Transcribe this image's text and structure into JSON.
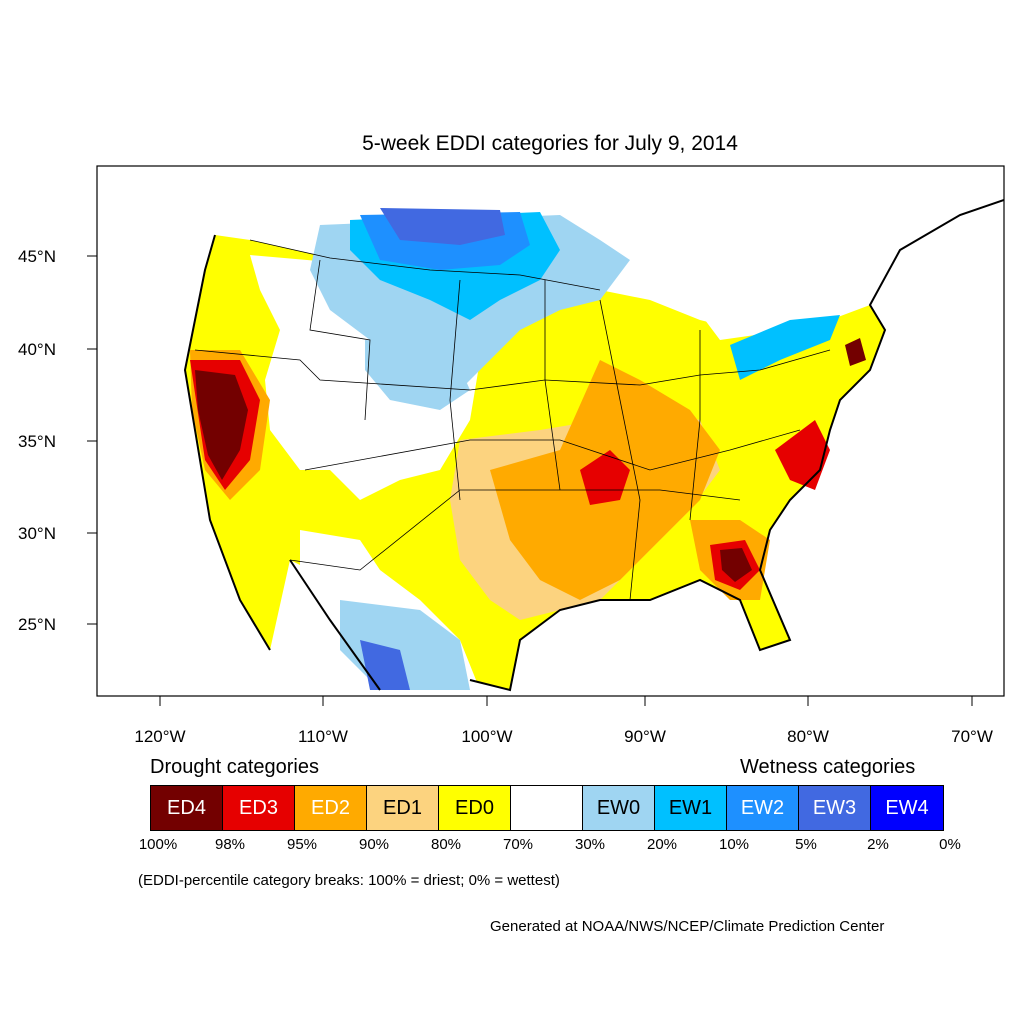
{
  "title": "5-week EDDI categories for July 9, 2014",
  "x_ticks": [
    "120°W",
    "110°W",
    "100°W",
    "90°W",
    "80°W",
    "70°W"
  ],
  "y_ticks": [
    "45°N",
    "40°N",
    "35°N",
    "30°N",
    "25°N"
  ],
  "legend": {
    "drought_label": "Drought categories",
    "wetness_label": "Wetness categories",
    "categories": [
      {
        "label": "ED4",
        "color": "#730000",
        "text_color": "#ffffff"
      },
      {
        "label": "ED3",
        "color": "#e60000",
        "text_color": "#ffffff"
      },
      {
        "label": "ED2",
        "color": "#ffaa00",
        "text_color": "#ffffff"
      },
      {
        "label": "ED1",
        "color": "#fcd37f",
        "text_color": "#000000"
      },
      {
        "label": "ED0",
        "color": "#ffff00",
        "text_color": "#000000"
      },
      {
        "label": "",
        "color": "#ffffff",
        "text_color": "#000000"
      },
      {
        "label": "EW0",
        "color": "#9fd5f2",
        "text_color": "#000000"
      },
      {
        "label": "EW1",
        "color": "#00c0ff",
        "text_color": "#000000"
      },
      {
        "label": "EW2",
        "color": "#1e90ff",
        "text_color": "#ffffff"
      },
      {
        "label": "EW3",
        "color": "#4169e1",
        "text_color": "#ffffff"
      },
      {
        "label": "EW4",
        "color": "#0000ff",
        "text_color": "#ffffff"
      }
    ],
    "breaks": [
      "100%",
      "98%",
      "95%",
      "90%",
      "80%",
      "70%",
      "30%",
      "20%",
      "10%",
      "5%",
      "2%",
      "0%"
    ]
  },
  "note": "(EDDI-percentile category breaks: 100% = driest; 0% = wettest)",
  "credit": "Generated at NOAA/NWS/NCEP/Climate Prediction Center"
}
